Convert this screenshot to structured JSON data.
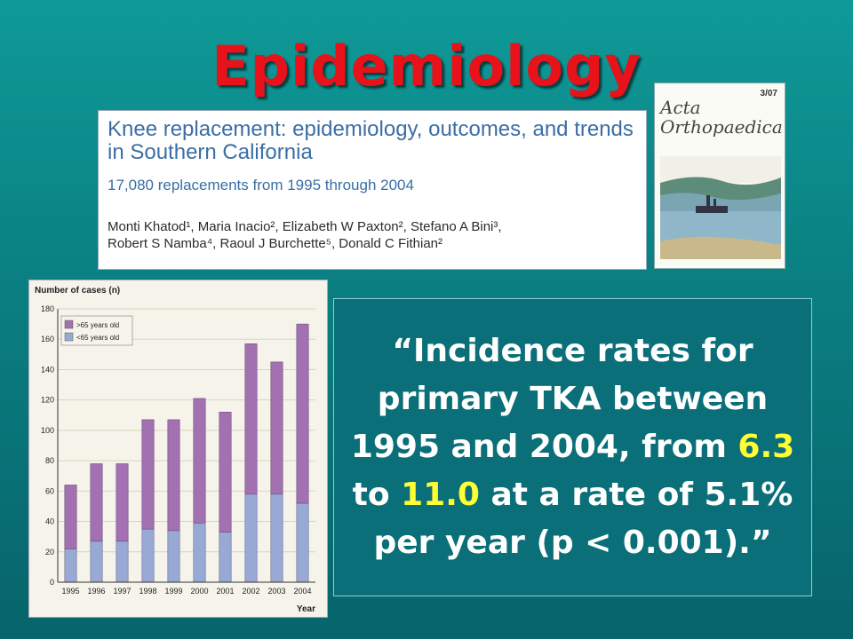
{
  "slide": {
    "title": "Epidemiology"
  },
  "paper": {
    "title": "Knee replacement: epidemiology, outcomes, and trends in Southern California",
    "subtitle": "17,080 replacements from 1995 through 2004",
    "authors_line1": "Monti Khatod¹, Maria Inacio², Elizabeth W Paxton², Stefano A Bini³,",
    "authors_line2": "Robert S Namba⁴, Raoul J Burchette⁵, Donald C Fithian²"
  },
  "journal": {
    "issue": "3/07",
    "name_line1": "Acta",
    "name_line2": "Orthopaedica"
  },
  "quote": {
    "part1": "“Incidence rates for primary TKA between 1995 and 2004, from ",
    "value1": "6.3",
    "part2": " to ",
    "value2": "11.0",
    "part3": " at a rate of 5.1% per year (p < 0.001).”"
  },
  "colors": {
    "title_red": "#e8121a",
    "highlight_yellow": "#ffff33",
    "bar_over65": "#a371b2",
    "bar_under65": "#98a9d6"
  },
  "chart_data": {
    "type": "bar",
    "stacked": true,
    "ylabel": "Number of cases (n)",
    "xlabel": "Year",
    "categories": [
      "1995",
      "1996",
      "1997",
      "1998",
      "1999",
      "2000",
      "2001",
      "2002",
      "2003",
      "2004"
    ],
    "series": [
      {
        "name": "<65 years old",
        "values": [
          22,
          27,
          27,
          35,
          34,
          39,
          33,
          58,
          58,
          52
        ]
      },
      {
        "name": ">65 years old",
        "values": [
          42,
          51,
          51,
          72,
          73,
          82,
          79,
          99,
          87,
          118
        ]
      }
    ],
    "ylim": [
      0,
      180
    ],
    "yticks": [
      0,
      20,
      40,
      60,
      80,
      100,
      120,
      140,
      160,
      180
    ],
    "grid": true,
    "legend": "top-left"
  }
}
